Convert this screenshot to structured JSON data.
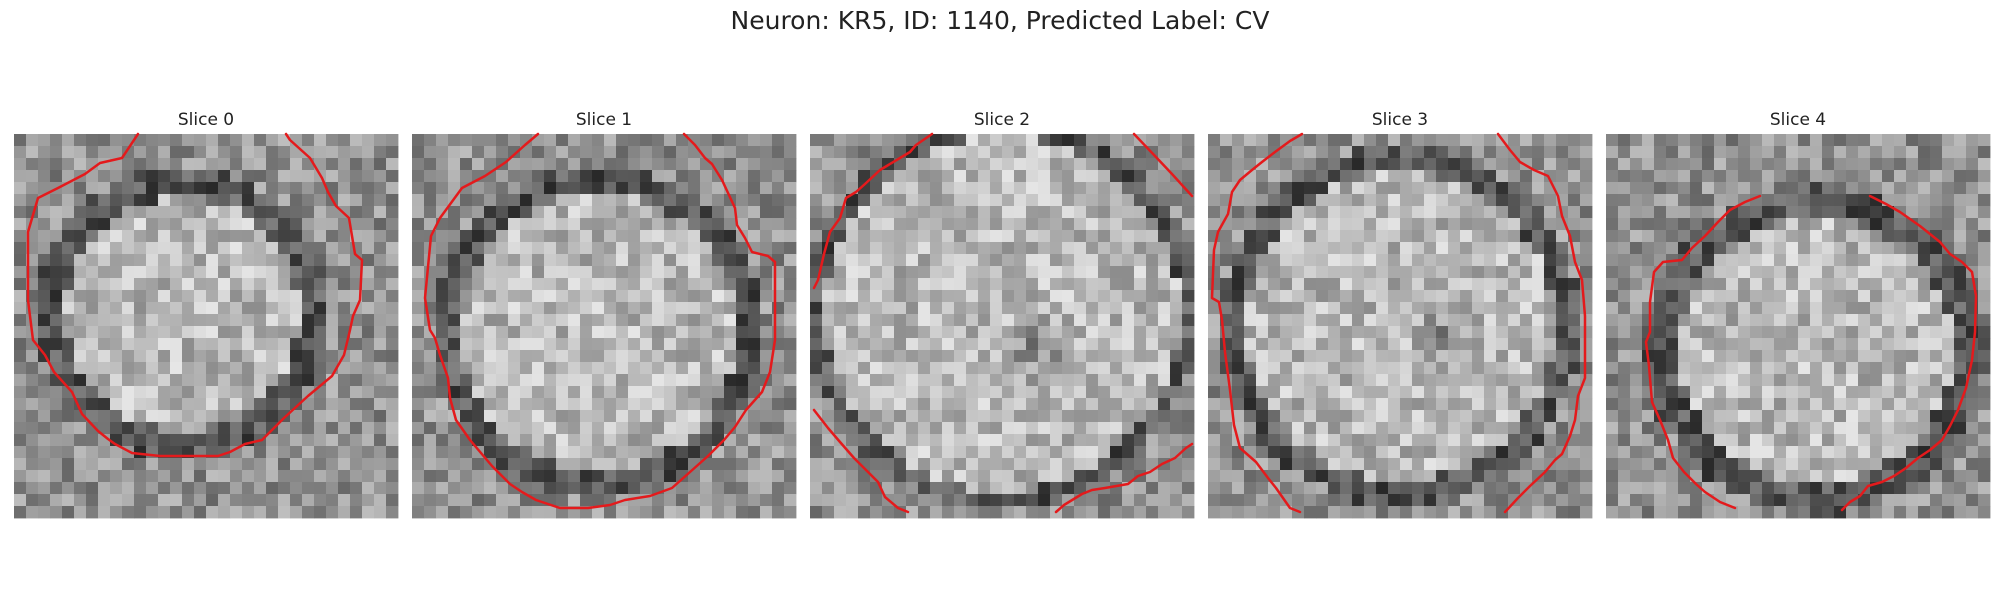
{
  "figure": {
    "suptitle": "Neuron: KR5, ID: 1140, Predicted Label: CV",
    "panels": [
      {
        "title": "Slice 0"
      },
      {
        "title": "Slice 1"
      },
      {
        "title": "Slice 2"
      },
      {
        "title": "Slice 3"
      },
      {
        "title": "Slice 4"
      }
    ]
  },
  "colors": {
    "background": "#ffffff",
    "contour": "#e41a1c",
    "title_text": "#222222"
  }
}
